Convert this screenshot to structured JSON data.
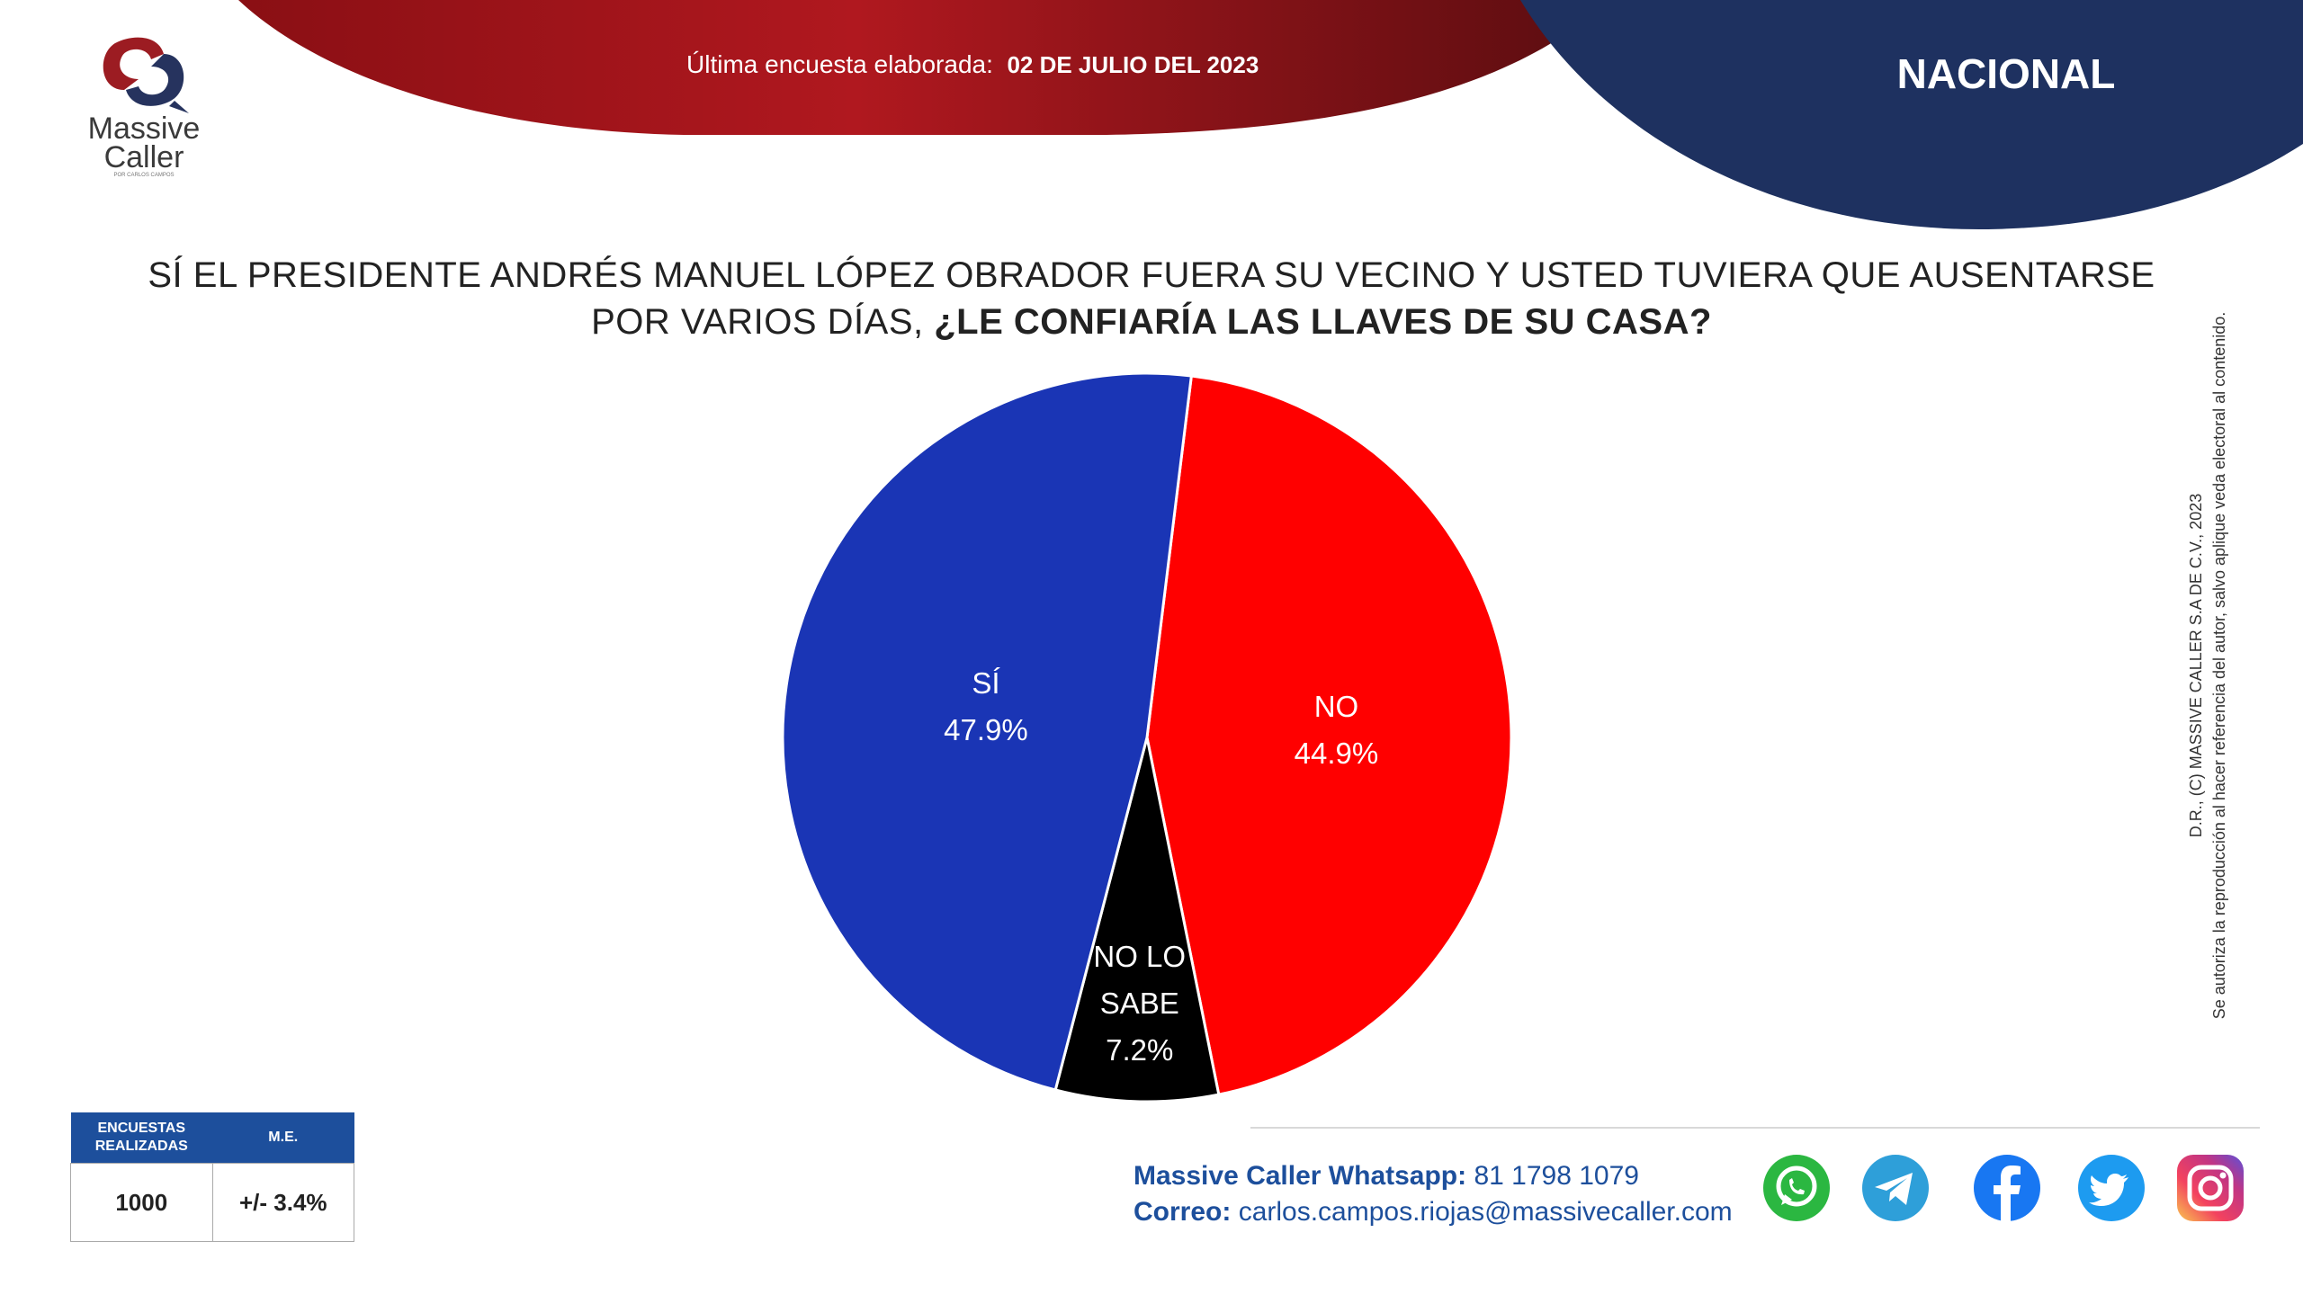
{
  "brand": {
    "line1": "Massive",
    "line2": "Caller",
    "tagline": "POR CARLOS CAMPOS"
  },
  "header": {
    "date_label": "Última encuesta elaborada:",
    "date_value": "02 DE JULIO DEL 2023",
    "region": "NACIONAL"
  },
  "question": {
    "line1": "SÍ EL PRESIDENTE ANDRÉS MANUEL LÓPEZ OBRADOR FUERA SU VECINO Y USTED TUVIERA QUE AUSENTARSE",
    "line2_regular": "POR VARIOS DÍAS,",
    "line2_bold": "¿LE CONFIARÍA LAS LLAVES DE SU CASA?"
  },
  "chart_data": {
    "type": "pie",
    "title": "",
    "categories": [
      "NO",
      "NO LO SABE",
      "SÍ"
    ],
    "values": [
      44.9,
      7.2,
      47.9
    ],
    "value_labels": [
      "44.9%",
      "7.2%",
      "47.9%"
    ],
    "label_lines": [
      [
        "NO",
        "44.9%"
      ],
      [
        "NO LO",
        "SABE",
        "7.2%"
      ],
      [
        "SÍ",
        "47.9%"
      ]
    ],
    "colors": [
      "#ff0000",
      "#000000",
      "#1a35b5"
    ],
    "legend": "none"
  },
  "copyright": {
    "line1": "D.R., (C) MASSIVE CALLER S.A DE C.V., 2023",
    "line2": "Se autoriza la reproducción al hacer referencia del autor, salvo aplique veda electoral al contenido."
  },
  "stats": {
    "col1_header": "ENCUESTAS REALIZADAS",
    "col2_header": "M.E.",
    "col1_value": "1000",
    "col2_value": "+/- 3.4%"
  },
  "contact": {
    "whatsapp_label": "Massive Caller Whatsapp:",
    "whatsapp_value": "81 1798 1079",
    "email_label": "Correo:",
    "email_value": "carlos.campos.riojas@massivecaller.com"
  },
  "social_icons": [
    "whatsapp-icon",
    "telegram-icon",
    "facebook-icon",
    "twitter-icon",
    "instagram-icon"
  ],
  "colors": {
    "header_red": "#a3141b",
    "header_navy": "#1e3160",
    "accent_blue": "#1d4f9c"
  }
}
